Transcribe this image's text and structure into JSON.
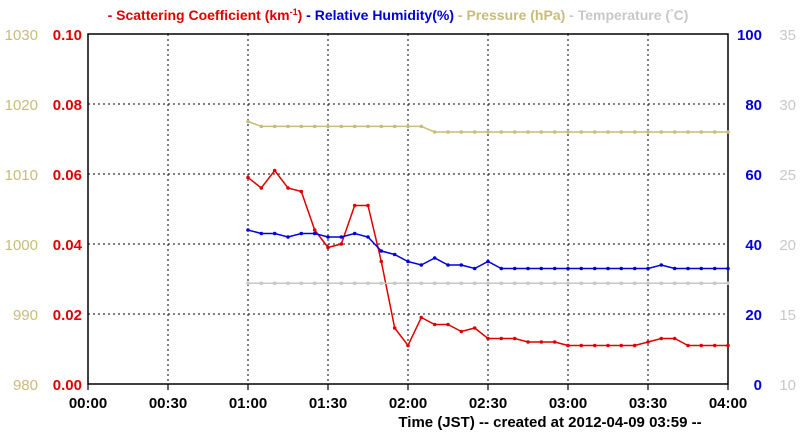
{
  "colors": {
    "scattering": "#e00000",
    "humidity": "#0000dd",
    "pressure": "#c8bc78",
    "temperature": "#c8c8c8",
    "grid": "#000000"
  },
  "legend": [
    {
      "key": "scattering",
      "dash": "-",
      "label": "Scattering Coefficient (km",
      "sup": "-1",
      "suffix": ")"
    },
    {
      "key": "humidity",
      "dash": "-",
      "label": "Relative Humidity(%)",
      "sup": "",
      "suffix": ""
    },
    {
      "key": "pressure",
      "dash": "-",
      "label": "Pressure (hPa)",
      "sup": "",
      "suffix": ""
    },
    {
      "key": "temperature",
      "dash": "-",
      "label": "Temperature (",
      "sup": "°",
      "suffix": "C)"
    }
  ],
  "caption": "Time (JST)  -- created at 2012-04-09 03:59 --",
  "chart_data": {
    "type": "line",
    "grid": true,
    "x_unit": "minutes after 00:00",
    "xlim": [
      0,
      240
    ],
    "x_ticks": [
      "00:00",
      "00:30",
      "01:00",
      "01:30",
      "02:00",
      "02:30",
      "03:00",
      "03:30",
      "04:00"
    ],
    "axes": {
      "pressure": {
        "side": "left-outer",
        "ylim": [
          980,
          1030
        ],
        "ticks": [
          "980",
          "990",
          "1000",
          "1010",
          "1020",
          "1030"
        ]
      },
      "scattering": {
        "side": "left-inner",
        "ylim": [
          0,
          0.1
        ],
        "ticks": [
          "0.00",
          "0.02",
          "0.04",
          "0.06",
          "0.08",
          "0.10"
        ]
      },
      "humidity": {
        "side": "right-inner",
        "ylim": [
          0,
          100
        ],
        "ticks": [
          "0",
          "20",
          "40",
          "60",
          "80",
          "100"
        ]
      },
      "temperature": {
        "side": "right-outer",
        "ylim": [
          10,
          35
        ],
        "ticks": [
          "10",
          "15",
          "20",
          "25",
          "30",
          "35"
        ]
      }
    },
    "series": [
      {
        "name": "Scattering Coefficient",
        "key": "scattering",
        "x": [
          60,
          65,
          70,
          75,
          80,
          85,
          90,
          95,
          100,
          105,
          110,
          115,
          120,
          125,
          130,
          135,
          140,
          145,
          150,
          155,
          160,
          165,
          170,
          175,
          180,
          185,
          190,
          195,
          200,
          205,
          210,
          215,
          220,
          225,
          230,
          235,
          240
        ],
        "y": [
          0.059,
          0.056,
          0.061,
          0.056,
          0.055,
          0.044,
          0.039,
          0.04,
          0.051,
          0.051,
          0.035,
          0.016,
          0.011,
          0.019,
          0.017,
          0.017,
          0.015,
          0.016,
          0.013,
          0.013,
          0.013,
          0.012,
          0.012,
          0.012,
          0.011,
          0.011,
          0.011,
          0.011,
          0.011,
          0.011,
          0.012,
          0.013,
          0.013,
          0.011,
          0.011,
          0.011,
          0.011
        ]
      },
      {
        "name": "Relative Humidity(%)",
        "key": "humidity",
        "x": [
          60,
          65,
          70,
          75,
          80,
          85,
          90,
          95,
          100,
          105,
          110,
          115,
          120,
          125,
          130,
          135,
          140,
          145,
          150,
          155,
          160,
          165,
          170,
          175,
          180,
          185,
          190,
          195,
          200,
          205,
          210,
          215,
          220,
          225,
          230,
          235,
          240
        ],
        "y": [
          44,
          43,
          43,
          42,
          43,
          43,
          42,
          42,
          43,
          42,
          38,
          37,
          35,
          34,
          36,
          34,
          34,
          33,
          35,
          33,
          33,
          33,
          33,
          33,
          33,
          33,
          33,
          33,
          33,
          33,
          33,
          34,
          33,
          33,
          33,
          33,
          33
        ]
      },
      {
        "name": "Pressure (hPa)",
        "key": "pressure",
        "x": [
          60,
          65,
          70,
          75,
          80,
          85,
          90,
          95,
          100,
          105,
          110,
          115,
          120,
          125,
          130,
          135,
          140,
          145,
          150,
          155,
          160,
          165,
          170,
          175,
          180,
          185,
          190,
          195,
          200,
          205,
          210,
          215,
          220,
          225,
          230,
          235,
          240
        ],
        "y": [
          1017.5,
          1016.8,
          1016.8,
          1016.8,
          1016.8,
          1016.8,
          1016.8,
          1016.8,
          1016.8,
          1016.8,
          1016.8,
          1016.8,
          1016.8,
          1016.8,
          1016,
          1016,
          1016,
          1016,
          1016,
          1016,
          1016,
          1016,
          1016,
          1016,
          1016,
          1016,
          1016,
          1016,
          1016,
          1016,
          1016,
          1016,
          1016,
          1016,
          1016,
          1016,
          1016
        ]
      },
      {
        "name": "Temperature (°C)",
        "key": "temperature",
        "x": [
          60,
          65,
          70,
          75,
          80,
          85,
          90,
          95,
          100,
          105,
          110,
          115,
          120,
          125,
          130,
          135,
          140,
          145,
          150,
          155,
          160,
          165,
          170,
          175,
          180,
          185,
          190,
          195,
          200,
          205,
          210,
          215,
          220,
          225,
          230,
          235,
          240
        ],
        "y": [
          17.2,
          17.2,
          17.2,
          17.2,
          17.2,
          17.2,
          17.2,
          17.2,
          17.2,
          17.2,
          17.2,
          17.2,
          17.2,
          17.2,
          17.2,
          17.2,
          17.2,
          17.2,
          17.2,
          17.2,
          17.2,
          17.2,
          17.2,
          17.2,
          17.2,
          17.2,
          17.2,
          17.2,
          17.2,
          17.2,
          17.2,
          17.2,
          17.2,
          17.2,
          17.2,
          17.2,
          17.2
        ]
      }
    ]
  }
}
